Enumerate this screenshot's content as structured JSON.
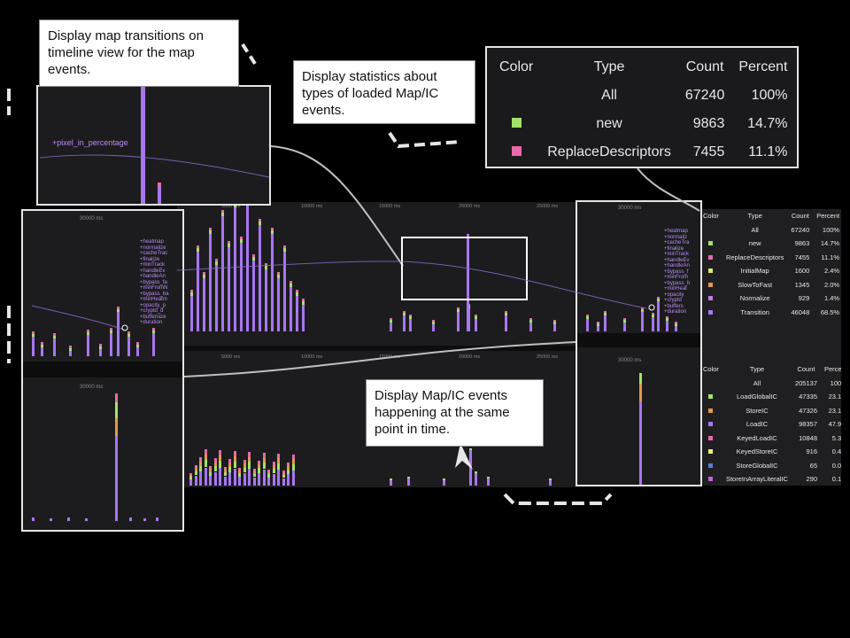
{
  "callouts": {
    "transitions": "Display map transitions on timeline view for the map events.",
    "statistics": "Display statistics about types of loaded Map/IC events.",
    "same_time": "Display Map/IC events happening at the same point in time."
  },
  "timeline": {
    "top_ticks": [
      "5000 ms",
      "10000 ms",
      "15000 ms",
      "20000 ms",
      "25000 ms"
    ],
    "bottom_ticks": [
      "5000 ms",
      "10000 ms",
      "15000 ms",
      "20000 ms",
      "25000 ms"
    ],
    "zoom_tick": "30000 ms",
    "transition_label": "+pixel_in_percentage",
    "left_zoom_labels": [
      "+heatmap",
      "+normalize",
      "+cacheTrac",
      "+finalize",
      "+minTrack",
      "+handleEv",
      "+handleAn",
      "+bypass_fa",
      "+minFromN",
      "+bypass_ba",
      "+minHeatm",
      "+opacity_p",
      "+cryptd_d",
      "+buffersize",
      "+duration"
    ],
    "right_zoom_labels": [
      "+heatmap",
      "+normaliz",
      "+cacheTra",
      "+finalize",
      "+minTrack",
      "+handleEv",
      "+handleAn",
      "+bypass_f",
      "+minFrom",
      "+bypass_b",
      "+minHeat",
      "+opacity",
      "+cryptd",
      "+buffers",
      "+duration"
    ]
  },
  "map_stats": {
    "headers": [
      "Color",
      "Type",
      "Count",
      "Percent"
    ],
    "rows": [
      {
        "color": "",
        "type": "All",
        "count": "67240",
        "percent": "100%"
      },
      {
        "color": "#a3e26a",
        "type": "new",
        "count": "9863",
        "percent": "14.7%"
      },
      {
        "color": "#e86aa9",
        "type": "ReplaceDescriptors",
        "count": "7455",
        "percent": "11.1%"
      },
      {
        "color": "#dcec6a",
        "type": "InitialMap",
        "count": "1600",
        "percent": "2.4%"
      },
      {
        "color": "#e09a4a",
        "type": "SlowToFast",
        "count": "1345",
        "percent": "2.0%"
      },
      {
        "color": "#c27be0",
        "type": "Normalize",
        "count": "929",
        "percent": "1.4%"
      },
      {
        "color": "#a777f0",
        "type": "Transition",
        "count": "46048",
        "percent": "68.5%"
      }
    ]
  },
  "ic_stats": {
    "headers": [
      "Color",
      "Type",
      "Count",
      "Percent"
    ],
    "rows": [
      {
        "color": "",
        "type": "All",
        "count": "205137",
        "percent": "100%"
      },
      {
        "color": "#a3e26a",
        "type": "LoadGlobalIC",
        "count": "47335",
        "percent": "23.1%"
      },
      {
        "color": "#e09a4a",
        "type": "StoreIC",
        "count": "47326",
        "percent": "23.1%"
      },
      {
        "color": "#a777f0",
        "type": "LoadIC",
        "count": "98357",
        "percent": "47.9%"
      },
      {
        "color": "#e86aa9",
        "type": "KeyedLoadIC",
        "count": "10848",
        "percent": "5.3%"
      },
      {
        "color": "#f0f06a",
        "type": "KeyedStoreIC",
        "count": "916",
        "percent": "0.4%"
      },
      {
        "color": "#5f7bd8",
        "type": "StoreGlobalIC",
        "count": "65",
        "percent": "0.0%"
      },
      {
        "color": "#c65fd8",
        "type": "StoreInArrayLiteralIC",
        "count": "290",
        "percent": "0.1%"
      }
    ]
  },
  "colors": {
    "transition": "#a777f0",
    "new": "#a3e26a",
    "replace": "#e86aa9",
    "slow": "#e09a4a",
    "panel_bg": "#1c1c1e"
  }
}
